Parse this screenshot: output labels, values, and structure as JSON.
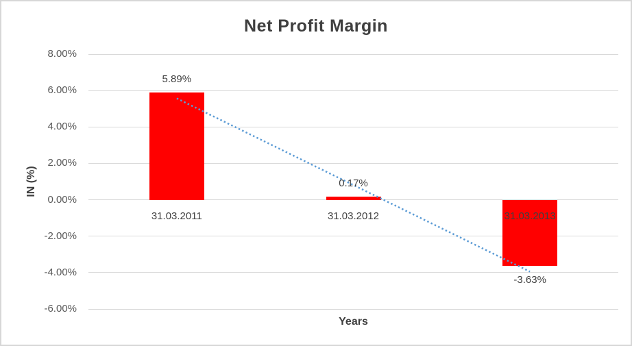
{
  "chart_data": {
    "type": "bar",
    "title": "Net Profit Margin",
    "xlabel": "Years",
    "ylabel": "IN (%)",
    "categories": [
      "31.03.2011",
      "31.03.2012",
      "31.03.2013"
    ],
    "values": [
      5.89,
      0.17,
      -3.63
    ],
    "value_labels": [
      "5.89%",
      "0.17%",
      "-3.63%"
    ],
    "y_tick_values": [
      8,
      6,
      4,
      2,
      0,
      -2,
      -4,
      -6
    ],
    "y_tick_labels": [
      "8.00%",
      "6.00%",
      "4.00%",
      "2.00%",
      "0.00%",
      "-2.00%",
      "-4.00%",
      "-6.00%"
    ],
    "ylim": [
      -6,
      8
    ],
    "grid": true,
    "legend": "none",
    "bar_color": "#FF0000",
    "trendline": {
      "kind": "linear",
      "style": "dotted",
      "color": "#5B9BD5"
    },
    "gridline_color": "#d9d9d9",
    "label_color": "#404040",
    "tick_color": "#595959"
  }
}
